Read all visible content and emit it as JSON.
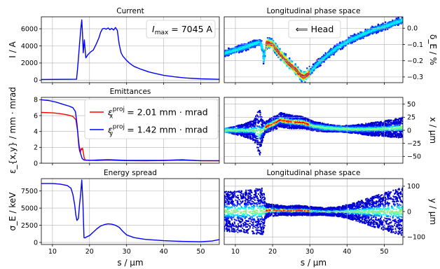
{
  "chart_data": [
    {
      "id": "current",
      "type": "line",
      "title": "Current",
      "ylabel": "I / A",
      "xlim": [
        7,
        55
      ],
      "ylim": [
        -300,
        7400
      ],
      "xticks": [
        10,
        20,
        30,
        40,
        50
      ],
      "yticks": [
        0,
        2000,
        4000,
        6000
      ],
      "yticklabels": [
        "0",
        "2000",
        "4000",
        "6000"
      ],
      "grid": true,
      "annotation": "I_max = 7045 A",
      "annotation_parts": [
        "I",
        "max",
        " = 7045 A"
      ],
      "series": [
        {
          "color": "#0000ff",
          "x": [
            7,
            16.5,
            16.8,
            17.0,
            17.3,
            17.6,
            17.9,
            18.1,
            18.3,
            18.6,
            19.0,
            19.6,
            20.3,
            21.0,
            21.8,
            22.5,
            23.0,
            23.5,
            24.0,
            24.5,
            25.0,
            25.5,
            26.0,
            26.5,
            27.0,
            27.5,
            28.0,
            28.5,
            29.0,
            30.0,
            31.0,
            32.0,
            34.0,
            36.0,
            38.0,
            40.0,
            43.0,
            46.0,
            50.0,
            55.0
          ],
          "y": [
            80,
            100,
            1500,
            2500,
            4200,
            5800,
            7045,
            5500,
            3200,
            4700,
            2600,
            3000,
            3300,
            3500,
            4200,
            4900,
            5600,
            6000,
            6050,
            5950,
            6100,
            5900,
            6050,
            5850,
            6150,
            5800,
            4200,
            3200,
            2800,
            2300,
            1900,
            1600,
            1250,
            950,
            750,
            550,
            380,
            250,
            150,
            90
          ]
        }
      ]
    },
    {
      "id": "emittances",
      "type": "line",
      "title": "Emittances",
      "ylabel": "ε_{x,y} / mm · mrad",
      "xlim": [
        7,
        55
      ],
      "ylim": [
        0,
        8.3
      ],
      "xticks": [
        10,
        20,
        30,
        40,
        50
      ],
      "yticks": [
        0,
        2,
        4,
        6,
        8
      ],
      "yticklabels": [
        "0",
        "2",
        "4",
        "6",
        "8"
      ],
      "grid": true,
      "legend_position": "top-right",
      "series": [
        {
          "name": "ε_x^proj = 2.01 mm · mrad",
          "legend_parts": [
            "ε",
            "x",
            "proj",
            " = 2.01 mm · mrad"
          ],
          "color": "#ff0000",
          "x": [
            7,
            10,
            12,
            14,
            15.5,
            16.3,
            16.8,
            17.1,
            17.3,
            17.5,
            17.7,
            17.9,
            18.1,
            18.3,
            18.5,
            18.7,
            19.0,
            20,
            22,
            25,
            30,
            35,
            40,
            45,
            50,
            55
          ],
          "y": [
            6.4,
            6.35,
            6.25,
            6.1,
            5.9,
            5.5,
            4.0,
            2.2,
            1.6,
            1.3,
            1.85,
            1.7,
            1.9,
            1.4,
            0.8,
            0.5,
            0.4,
            0.38,
            0.35,
            0.4,
            0.33,
            0.3,
            0.35,
            0.45,
            0.3,
            0.3
          ]
        },
        {
          "name": "ε_y^proj = 1.42 mm · mrad",
          "legend_parts": [
            "ε",
            "y",
            "proj",
            " = 1.42 mm · mrad"
          ],
          "color": "#0000ff",
          "x": [
            7,
            9,
            11,
            13,
            14.5,
            15.5,
            16.2,
            16.6,
            17.0,
            17.3,
            17.6,
            18.0,
            18.5,
            19.0,
            20,
            22,
            25,
            30,
            35,
            40,
            45,
            50,
            55
          ],
          "y": [
            8.0,
            7.9,
            7.7,
            7.4,
            7.2,
            7.0,
            6.5,
            5.0,
            3.0,
            1.8,
            1.2,
            0.6,
            0.4,
            0.38,
            0.36,
            0.4,
            0.45,
            0.35,
            0.35,
            0.35,
            0.4,
            0.33,
            0.32
          ]
        }
      ]
    },
    {
      "id": "energy-spread",
      "type": "line",
      "title": "Energy spread",
      "ylabel": "σ_E / keV",
      "xlabel": "s / μm",
      "xlim": [
        7,
        55
      ],
      "ylim": [
        -300,
        9300
      ],
      "xticks": [
        10,
        20,
        30,
        40,
        50
      ],
      "yticks": [
        0,
        2500,
        5000,
        7500
      ],
      "yticklabels": [
        "0",
        "2500",
        "5000",
        "7500"
      ],
      "grid": true,
      "series": [
        {
          "color": "#0000ff",
          "x": [
            7,
            10,
            12,
            14,
            15,
            15.5,
            16.0,
            16.3,
            16.6,
            17.0,
            17.3,
            17.6,
            17.9,
            18.2,
            18.5,
            18.8,
            19.2,
            20,
            21,
            22,
            23,
            24,
            25,
            26,
            27,
            28,
            29,
            30,
            32,
            35,
            40,
            45,
            50,
            53,
            55
          ],
          "y": [
            8600,
            8600,
            8500,
            8300,
            7900,
            7000,
            5500,
            4000,
            3200,
            3500,
            5500,
            7000,
            9100,
            6000,
            700,
            650,
            800,
            1000,
            1500,
            2000,
            2400,
            2600,
            2700,
            2650,
            2500,
            2200,
            1600,
            1100,
            700,
            450,
            250,
            150,
            100,
            200,
            400
          ]
        }
      ]
    },
    {
      "id": "lps-energy",
      "type": "scatter",
      "title": "Longitudinal phase space",
      "ylabel": "δ_E / %",
      "xlim": [
        7,
        55
      ],
      "ylim": [
        -0.335,
        0.07
      ],
      "xticks": [
        10,
        20,
        30,
        40,
        50
      ],
      "yticks": [
        0.0,
        -0.1,
        -0.2,
        -0.3
      ],
      "yticklabels": [
        "0.0",
        "−0.1",
        "−0.2",
        "−0.3"
      ],
      "y_axis_side": "right",
      "grid": true,
      "annotation": "⟸ Head",
      "centerline": {
        "x": [
          7,
          12,
          16.5,
          17.3,
          17.6,
          18.0,
          18.4,
          20,
          22,
          24,
          26,
          27.5,
          28.5,
          30,
          32,
          35,
          38,
          41,
          44,
          47,
          50,
          53,
          55
        ],
        "y": [
          -0.155,
          -0.12,
          -0.085,
          -0.12,
          -0.2,
          -0.14,
          -0.09,
          -0.1,
          -0.16,
          -0.21,
          -0.25,
          -0.29,
          -0.3,
          -0.27,
          -0.22,
          -0.16,
          -0.11,
          -0.07,
          -0.04,
          -0.01,
          0.01,
          0.035,
          0.05
        ]
      }
    },
    {
      "id": "lps-x",
      "type": "scatter",
      "title": "",
      "ylabel": "x / μm",
      "xlim": [
        7,
        55
      ],
      "ylim": [
        -63,
        63
      ],
      "xticks": [
        10,
        20,
        30,
        40,
        50
      ],
      "yticks": [
        50,
        25,
        0,
        -25,
        -50
      ],
      "yticklabels": [
        "50",
        "25",
        "0",
        "−25",
        "−50"
      ],
      "y_axis_side": "right",
      "grid": true,
      "envelope": {
        "x": [
          7,
          10,
          13,
          15,
          16.5,
          17.3,
          18.0,
          18.6,
          20,
          22,
          25,
          28,
          31,
          34,
          38,
          42,
          46,
          50,
          55
        ],
        "center": [
          0,
          0,
          0,
          0,
          -5,
          0,
          5,
          8,
          12,
          20,
          16,
          15,
          8,
          5,
          3,
          2,
          2,
          3,
          5
        ],
        "halfwidth": [
          3,
          8,
          14,
          20,
          48,
          20,
          10,
          12,
          13,
          14,
          13,
          12,
          9,
          8,
          6,
          8,
          12,
          15,
          20
        ]
      }
    },
    {
      "id": "lps-y",
      "type": "scatter",
      "title": "Longitudinal phase space",
      "ylabel": "y / μm",
      "xlabel": "s / μm",
      "xlim": [
        7,
        55
      ],
      "ylim": [
        -130,
        130
      ],
      "xticks": [
        10,
        20,
        30,
        40,
        50
      ],
      "yticks": [
        100,
        0,
        -100
      ],
      "yticklabels": [
        "100",
        "0",
        "−100"
      ],
      "y_axis_side": "right",
      "grid": true,
      "envelope": {
        "x": [
          7,
          10,
          13,
          15,
          16.5,
          17.5,
          18.2,
          19,
          21,
          23,
          25,
          27,
          30,
          34,
          38,
          42,
          46,
          50,
          55
        ],
        "center": [
          0,
          0,
          0,
          0,
          0,
          0,
          3,
          5,
          5,
          4,
          3,
          5,
          2,
          0,
          0,
          0,
          0,
          0,
          0
        ],
        "halfwidth": [
          80,
          82,
          85,
          88,
          92,
          92,
          30,
          25,
          22,
          18,
          20,
          20,
          18,
          15,
          20,
          35,
          55,
          75,
          95
        ]
      }
    }
  ]
}
